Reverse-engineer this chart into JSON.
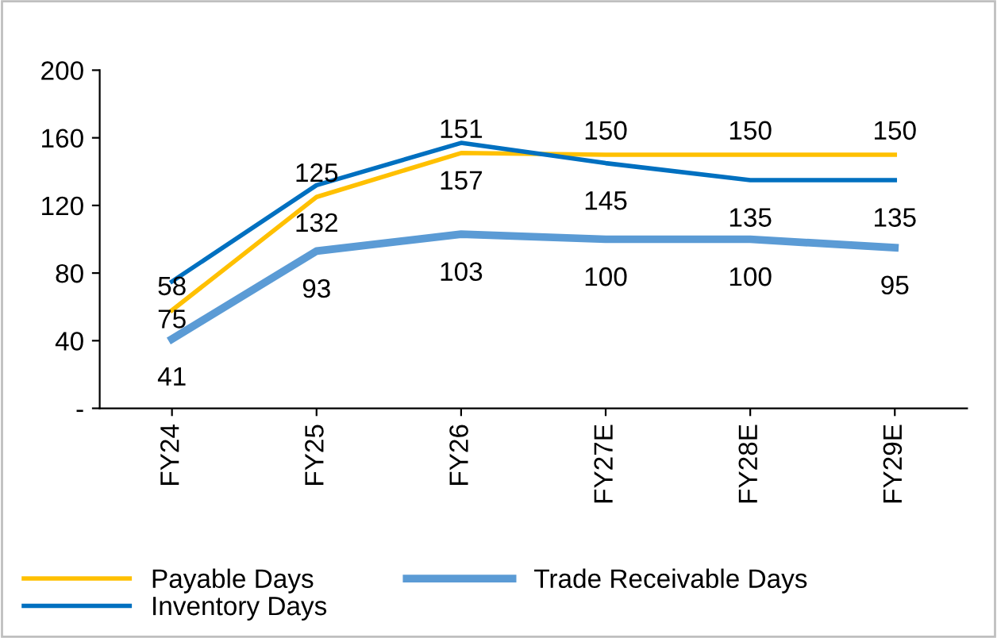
{
  "chart_data": {
    "type": "line",
    "categories": [
      "FY24",
      "FY25",
      "FY26",
      "FY27E",
      "FY28E",
      "FY29E"
    ],
    "series": [
      {
        "name": "Payable Days",
        "color": "#ffc000",
        "values": [
          58,
          125,
          151,
          150,
          150,
          150
        ]
      },
      {
        "name": "Inventory Days",
        "color": "#0070c0",
        "values": [
          75,
          132,
          157,
          145,
          135,
          135
        ]
      },
      {
        "name": "Trade Receivable Days",
        "color": "#5b9bd5",
        "values": [
          41,
          93,
          103,
          100,
          100,
          95
        ]
      }
    ],
    "ylim": [
      0,
      200
    ],
    "yticks": [
      {
        "value": 0,
        "label": "-"
      },
      40,
      80,
      120,
      160,
      200
    ],
    "grid": false,
    "legend": "bottom",
    "marker": "none",
    "line_style": "solid",
    "data_labels": true
  }
}
